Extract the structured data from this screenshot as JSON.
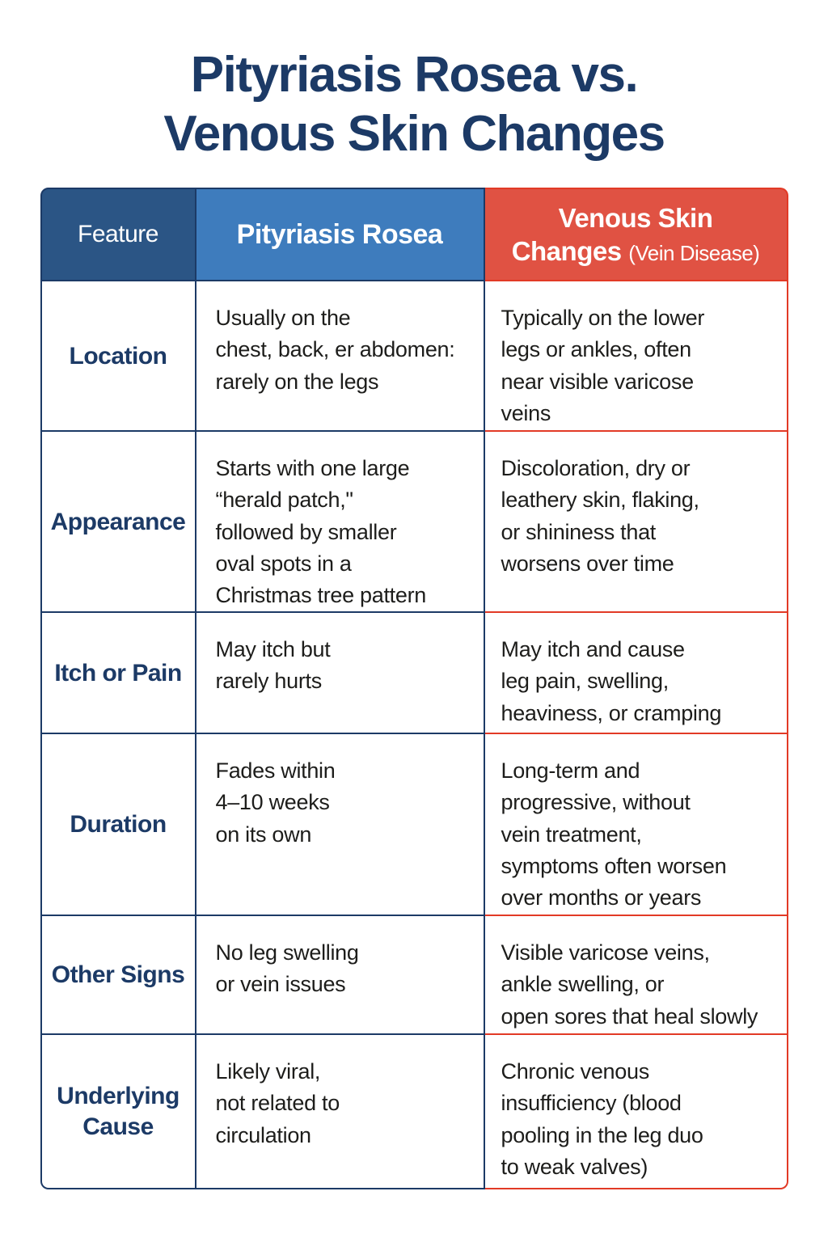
{
  "title": "Pityriasis Rosea vs.\nVenous Skin Changes",
  "colors": {
    "navy": "#1C3A66",
    "header_dark_blue": "#2B5585",
    "header_blue": "#3E7CBD",
    "header_red": "#E05243",
    "border_navy": "#1C3A66",
    "border_red": "#E23A26",
    "body_text": "#1D1D1B"
  },
  "table": {
    "headers": {
      "feature": "Feature",
      "pityriasis": "Pityriasis Rosea",
      "venous_line1": "Venous Skin",
      "venous_line2_main": "Changes",
      "venous_line2_sub": "(Vein Disease)"
    },
    "rows": [
      {
        "feature": "Location",
        "pityriasis": "Usually on the\nchest, back, er abdomen:\nrarely on the legs",
        "venous": "Typically on the lower\nlegs or ankles, often\nnear visible varicose\nveins"
      },
      {
        "feature": "Appearance",
        "pityriasis": "Starts with one large\n“herald patch,\"\nfollowed by smaller\noval spots in a\nChristmas tree pattern",
        "venous": "Discoloration, dry or\nleathery skin, flaking,\nor shininess that\nworsens over time"
      },
      {
        "feature": "Itch or Pain",
        "pityriasis": "May itch but\nrarely hurts",
        "venous": "May itch and cause\nleg pain, swelling,\nheaviness, or cramping"
      },
      {
        "feature": "Duration",
        "pityriasis": "Fades within\n4–10 weeks\non its own",
        "venous": "Long-term and\nprogressive, without\nvein treatment,\nsymptoms often worsen\nover months or years"
      },
      {
        "feature": "Other Signs",
        "pityriasis": "No leg swelling\nor vein issues",
        "venous": "Visible varicose veins,\nankle swelling, or\nopen sores that heal slowly"
      },
      {
        "feature": "Underlying\nCause",
        "pityriasis": "Likely viral,\nnot related to\ncirculation",
        "venous": "Chronic venous\ninsufficiency (blood\npooling in the leg duo\nto weak valves)"
      }
    ]
  }
}
